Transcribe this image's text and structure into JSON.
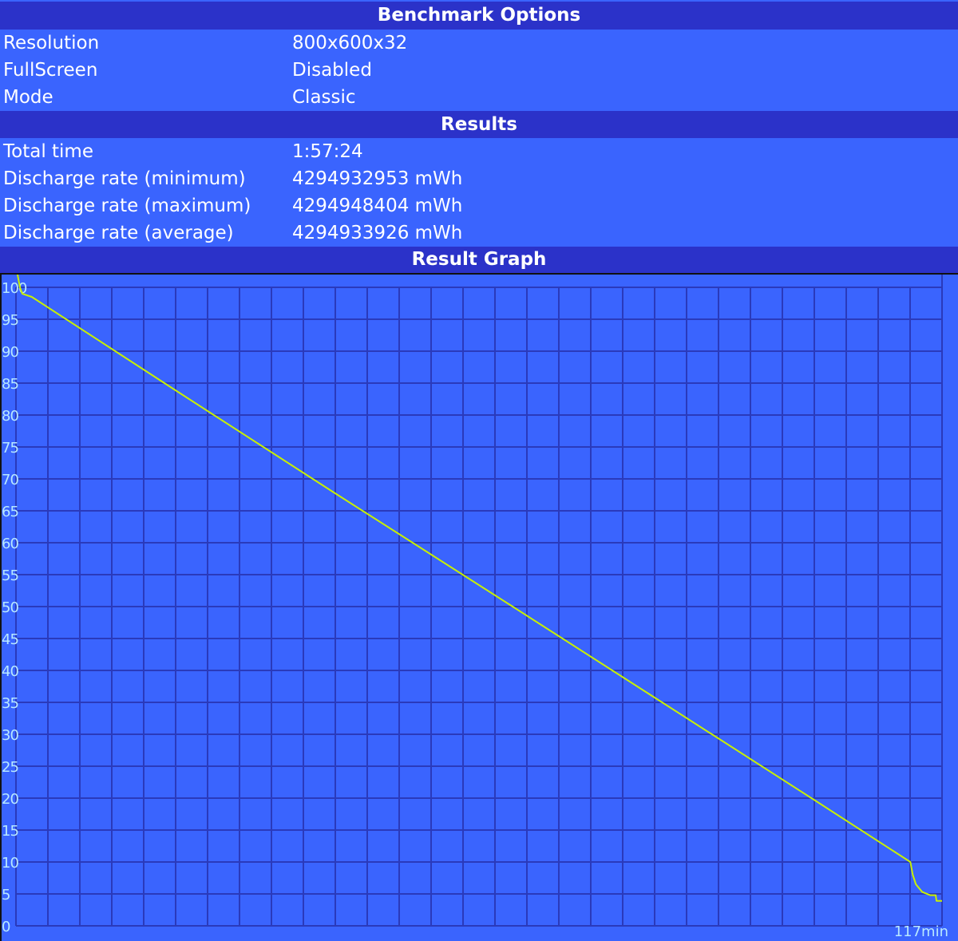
{
  "sections": {
    "options_title": "Benchmark Options",
    "results_title": "Results",
    "graph_title": "Result Graph"
  },
  "options": [
    {
      "label": "Resolution",
      "value": "800x600x32"
    },
    {
      "label": "FullScreen",
      "value": "Disabled"
    },
    {
      "label": "Mode",
      "value": "Classic"
    }
  ],
  "results": [
    {
      "label": "Total time",
      "value": "1:57:24"
    },
    {
      "label": "Discharge rate (minimum)",
      "value": "4294932953 mWh"
    },
    {
      "label": "Discharge rate (maximum)",
      "value": "4294948404 mWh"
    },
    {
      "label": "Discharge rate (average)",
      "value": "4294933926 mWh"
    }
  ],
  "colors": {
    "header": "#2b32c9",
    "row": "#3a64fe",
    "grid": "#2a3abb",
    "line": "#c8f000",
    "tick": "#b8e8ff"
  },
  "chart_data": {
    "type": "line",
    "xlim": [
      0,
      117
    ],
    "ylim": [
      0,
      100
    ],
    "grid": true,
    "x_end_label": "117min",
    "y_ticks": [
      0,
      5,
      10,
      15,
      20,
      25,
      30,
      35,
      40,
      45,
      50,
      55,
      60,
      65,
      70,
      75,
      80,
      85,
      90,
      95,
      100
    ],
    "x": [
      0.2,
      0.5,
      0.8,
      2,
      20,
      40,
      62.5,
      80,
      100,
      110,
      113,
      113.3,
      113.7,
      114.5,
      115.5,
      116.2,
      116.3,
      117
    ],
    "y": [
      102,
      100,
      99,
      98.5,
      84,
      68,
      50.2,
      36.3,
      20.4,
      12.4,
      10,
      8,
      6.5,
      5.3,
      4.8,
      4.8,
      3.9,
      3.9
    ]
  }
}
